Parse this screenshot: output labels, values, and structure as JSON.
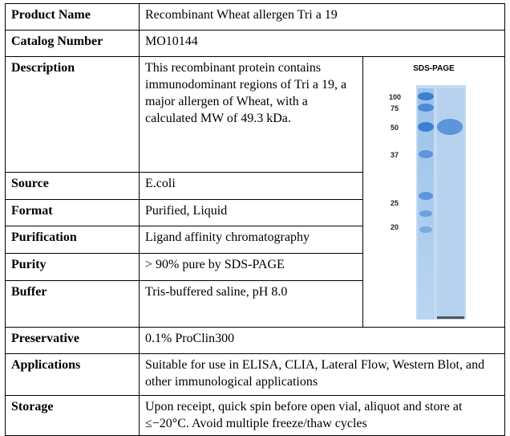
{
  "rows": [
    {
      "label": "Product Name",
      "value": "Recombinant Wheat allergen Tri a 19"
    },
    {
      "label": "Catalog Number",
      "value": "MO10144"
    },
    {
      "label": "Description",
      "value": "This recombinant protein contains immunodominant regions of Tri a 19, a major allergen of Wheat, with a calculated MW of 49.3 kDa."
    },
    {
      "label": "Source",
      "value": "E.coli"
    },
    {
      "label": "Format",
      "value": "Purified, Liquid"
    },
    {
      "label": "Purification",
      "value": "Ligand affinity chromatography"
    },
    {
      "label": "Purity",
      "value": "> 90% pure by SDS-PAGE"
    },
    {
      "label": "Buffer",
      "value": "Tris-buffered saline, pH 8.0"
    },
    {
      "label": "Preservative",
      "value": "0.1% ProClin300"
    },
    {
      "label": "Applications",
      "value": "Suitable for use in ELISA, CLIA, Lateral Flow, Western Blot, and other immunological applications"
    },
    {
      "label": "Storage",
      "value": "Upon receipt, quick spin before open vial, aliquot and store at ≤−20°C. Avoid multiple freeze/thaw cycles"
    }
  ],
  "gel": {
    "title": "SDS-PAGE",
    "markers": [
      "100",
      "75",
      "50",
      "37",
      "25",
      "20"
    ]
  }
}
